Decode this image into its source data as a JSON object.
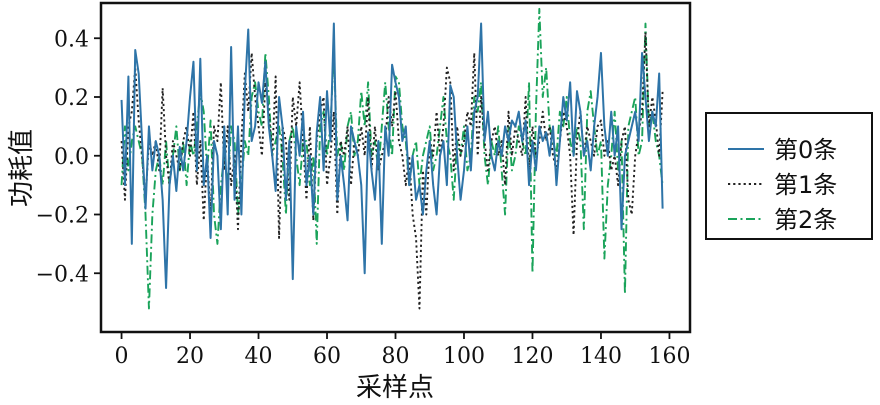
{
  "chart_data": {
    "type": "line",
    "title": "",
    "xlabel": "采样点",
    "ylabel": "功耗值",
    "xlim": [
      -6,
      166
    ],
    "ylim": [
      -0.6,
      0.52
    ],
    "xticks": [
      0,
      20,
      40,
      60,
      80,
      100,
      120,
      140,
      160
    ],
    "yticks": [
      -0.4,
      -0.2,
      0.0,
      0.2,
      0.4
    ],
    "xtick_labels": [
      "0",
      "20",
      "40",
      "60",
      "80",
      "100",
      "120",
      "140",
      "160"
    ],
    "ytick_labels": [
      "−0.4",
      "−0.2",
      "0.0",
      "0.2",
      "0.4"
    ],
    "grid": false,
    "legend_position": "right-outside",
    "series": [
      {
        "name": "第0条",
        "color": "#2e74a8",
        "style": "solid",
        "values": [
          0.19,
          -0.1,
          0.27,
          -0.3,
          0.36,
          0.28,
          0.05,
          -0.18,
          0.1,
          -0.05,
          0.05,
          0.0,
          -0.15,
          -0.45,
          -0.1,
          0.0,
          -0.12,
          0.03,
          -0.05,
          0.05,
          0.2,
          0.32,
          -0.05,
          0.33,
          -0.1,
          0.0,
          -0.28,
          0.05,
          0.0,
          -0.25,
          0.1,
          -0.2,
          0.37,
          -0.15,
          0.1,
          -0.2,
          0.22,
          0.43,
          0.05,
          0.1,
          0.25,
          0.18,
          0.32,
          0.1,
          0.0,
          -0.12,
          0.2,
          0.1,
          -0.15,
          0.05,
          -0.42,
          0.1,
          0.0,
          0.15,
          -0.1,
          0.0,
          -0.2,
          0.08,
          0.2,
          -0.05,
          0.22,
          0.05,
          0.45,
          -0.15,
          0.0,
          -0.1,
          -0.22,
          0.1,
          0.05,
          0.0,
          -0.1,
          -0.4,
          0.08,
          -0.05,
          -0.15,
          0.05,
          -0.3,
          0.1,
          0.0,
          0.31,
          0.25,
          0.2,
          0.05,
          0.1,
          -0.1,
          0.0,
          -0.15,
          -0.1,
          -0.2,
          -0.05,
          0.05,
          -0.1,
          -0.2,
          0.0,
          0.05,
          -0.1,
          0.24,
          0.2,
          0.0,
          -0.15,
          -0.05,
          0.1,
          -0.05,
          0.15,
          0.2,
          0.45,
          0.05,
          0.15,
          0.0,
          -0.05,
          0.05,
          0.0,
          0.1,
          0.05,
          0.12,
          0.1,
          0.15,
          0.05,
          0.12,
          -0.1,
          0.05,
          -0.05,
          0.1,
          0.05,
          0.08,
          0.0,
          0.1,
          -0.1,
          0.05,
          0.2,
          0.12,
          0.25,
          0.0,
          0.22,
          0.15,
          0.0,
          0.05,
          -0.05,
          0.1,
          0.2,
          0.35,
          0.1,
          0.0,
          0.15,
          0.0,
          0.1,
          -0.25,
          0.0,
          0.05,
          0.1,
          0.15,
          0.05,
          0.35,
          0.2,
          0.05,
          0.15,
          0.1,
          0.28,
          -0.18
        ]
      },
      {
        "name": "第1条",
        "color": "#222222",
        "style": "dotted",
        "values": [
          0.05,
          -0.15,
          0.1,
          0.15,
          0.3,
          0.12,
          0.0,
          -0.15,
          0.05,
          0.0,
          0.05,
          -0.05,
          0.23,
          0.0,
          -0.1,
          0.05,
          0.0,
          -0.05,
          0.05,
          0.1,
          0.0,
          0.15,
          -0.1,
          0.05,
          -0.22,
          0.0,
          -0.2,
          0.1,
          0.05,
          0.25,
          -0.05,
          0.1,
          -0.1,
          0.0,
          -0.25,
          0.05,
          0.28,
          0.15,
          0.35,
          0.2,
          0.1,
          0.0,
          0.25,
          0.15,
          0.0,
          0.27,
          -0.28,
          0.1,
          0.05,
          -0.15,
          0.2,
          0.1,
          0.25,
          0.05,
          -0.15,
          0.1,
          -0.22,
          0.05,
          0.15,
          0.2,
          -0.1,
          0.0,
          0.15,
          -0.2,
          0.05,
          0.0,
          0.1,
          -0.1,
          0.05,
          0.0,
          0.1,
          0.0,
          0.2,
          -0.05,
          0.1,
          -0.05,
          0.0,
          0.05,
          0.2,
          0.1,
          0.22,
          0.05,
          0.0,
          -0.1,
          0.0,
          -0.2,
          -0.28,
          -0.52,
          -0.05,
          -0.2,
          0.05,
          0.0,
          0.15,
          0.0,
          0.1,
          0.3,
          0.25,
          -0.05,
          0.1,
          0.0,
          0.05,
          0.15,
          0.1,
          0.35,
          0.0,
          0.2,
          0.05,
          -0.05,
          0.05,
          0.1,
          0.0,
          0.05,
          -0.1,
          0.15,
          0.0,
          0.1,
          0.05,
          0.0,
          0.2,
          -0.05,
          0.1,
          0.0,
          0.05,
          0.15,
          0.05,
          0.1,
          0.0,
          -0.05,
          0.05,
          0.15,
          0.1,
          0.0,
          -0.27,
          0.05,
          0.15,
          0.0,
          0.1,
          0.05,
          0.0,
          0.1,
          0.12,
          0.0,
          0.05,
          -0.05,
          0.0,
          -0.1,
          0.05,
          0.1,
          -0.15,
          -0.2,
          0.0,
          0.08,
          0.15,
          0.42,
          0.1,
          0.2,
          0.12,
          0.0,
          0.22
        ]
      },
      {
        "name": "第2条",
        "color": "#1aa35a",
        "style": "dashdot",
        "values": [
          -0.1,
          0.1,
          -0.05,
          0.05,
          0.1,
          0.05,
          0.0,
          -0.2,
          -0.52,
          -0.2,
          -0.05,
          0.0,
          -0.1,
          0.05,
          -0.1,
          0.0,
          0.1,
          -0.05,
          0.05,
          -0.1,
          0.05,
          0.0,
          0.1,
          0.22,
          0.15,
          -0.05,
          0.12,
          -0.2,
          -0.3,
          -0.1,
          0.0,
          -0.1,
          0.1,
          0.05,
          -0.2,
          -0.1,
          0.05,
          0.0,
          0.2,
          0.25,
          0.15,
          0.1,
          0.35,
          0.2,
          0.0,
          0.05,
          0.1,
          0.0,
          -0.2,
          0.05,
          0.1,
          0.0,
          -0.1,
          0.05,
          0.05,
          -0.1,
          0.0,
          -0.3,
          0.1,
          0.15,
          0.0,
          0.1,
          0.35,
          0.0,
          0.05,
          -0.05,
          0.1,
          0.15,
          0.0,
          0.05,
          0.22,
          0.1,
          0.25,
          0.0,
          0.05,
          -0.05,
          0.1,
          0.25,
          0.1,
          0.0,
          0.27,
          0.25,
          0.1,
          0.05,
          -0.1,
          0.0,
          0.05,
          -0.1,
          0.0,
          0.05,
          0.1,
          -0.05,
          0.0,
          0.1,
          0.2,
          0.05,
          0.0,
          -0.15,
          0.05,
          0.0,
          0.1,
          -0.05,
          0.0,
          0.2,
          0.15,
          0.25,
          0.0,
          -0.1,
          0.05,
          0.0,
          0.1,
          -0.05,
          -0.2,
          0.1,
          -0.05,
          0.0,
          0.1,
          0.05,
          0.0,
          0.25,
          -0.4,
          0.15,
          0.5,
          0.2,
          0.3,
          0.1,
          0.05,
          0.0,
          0.15,
          0.1,
          0.2,
          0.05,
          0.0,
          0.1,
          0.05,
          -0.25,
          0.15,
          0.22,
          0.1,
          0.0,
          0.05,
          -0.35,
          -0.1,
          0.0,
          0.15,
          -0.05,
          0.05,
          -0.47,
          0.1,
          0.15,
          0.2,
          0.0,
          0.05,
          0.45,
          0.1,
          0.15,
          0.05,
          0.0,
          -0.1
        ]
      }
    ]
  }
}
